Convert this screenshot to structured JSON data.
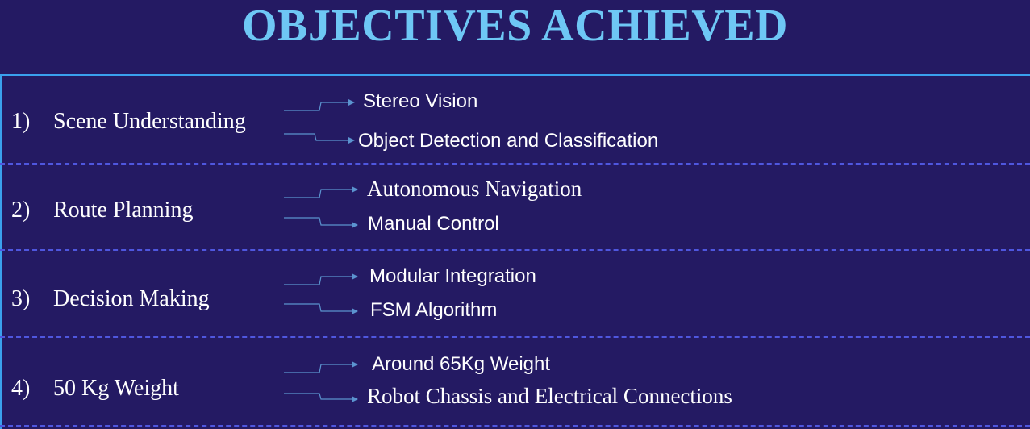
{
  "title": "OBJECTIVES ACHIEVED",
  "colors": {
    "background": "#241a63",
    "title": "#6ec7f5",
    "border": "#3aa0ee",
    "divider": "#4f57df",
    "arrow": "#5b93cf",
    "text": "#ffffff"
  },
  "objectives": [
    {
      "number": "1)",
      "label": "Scene Understanding",
      "items": [
        "Stereo Vision",
        "Object Detection and Classification"
      ]
    },
    {
      "number": "2)",
      "label": "Route Planning",
      "items": [
        "Autonomous Navigation",
        "Manual Control"
      ]
    },
    {
      "number": "3)",
      "label": "Decision Making",
      "items": [
        "Modular Integration",
        "FSM Algorithm"
      ]
    },
    {
      "number": "4)",
      "label": "50 Kg Weight",
      "items": [
        "Around 65Kg Weight",
        "Robot Chassis and Electrical Connections"
      ]
    }
  ]
}
